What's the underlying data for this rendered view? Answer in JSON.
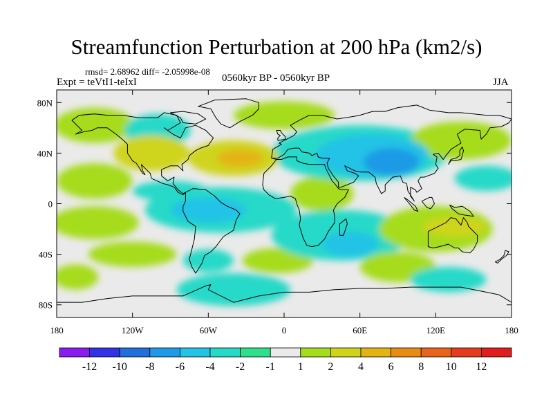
{
  "chart_data": {
    "type": "heatmap",
    "title": "Streamfunction Perturbation at 200 hPa (km2/s)",
    "stats_line": "rmsd= 2.68962 diff= -2.05998e-08",
    "experiment": "Expt = teVtI1-teIxI",
    "period": "0560kyr BP - 0560kyr BP",
    "season": "JJA",
    "x_range": [
      -180,
      180
    ],
    "y_range": [
      -90,
      90
    ],
    "x_ticks": [
      {
        "value": -180,
        "label": "180"
      },
      {
        "value": -120,
        "label": "120W"
      },
      {
        "value": -60,
        "label": "60W"
      },
      {
        "value": 0,
        "label": "0"
      },
      {
        "value": 60,
        "label": "60E"
      },
      {
        "value": 120,
        "label": "120E"
      },
      {
        "value": 180,
        "label": "180"
      }
    ],
    "y_ticks": [
      {
        "value": 80,
        "label": "80N"
      },
      {
        "value": 40,
        "label": "40N"
      },
      {
        "value": 0,
        "label": "0"
      },
      {
        "value": -40,
        "label": "40S"
      },
      {
        "value": -80,
        "label": "80S"
      }
    ],
    "colorbar": {
      "colors": [
        "#8a1cf0",
        "#3232e6",
        "#1f6fdc",
        "#1e9ae6",
        "#23c3e6",
        "#26d9c8",
        "#2ee08c",
        "#eaeaea",
        "#a6dc1e",
        "#cfd41a",
        "#e4b414",
        "#eb8c12",
        "#e8641a",
        "#e63c1e",
        "#e01e1e"
      ],
      "labels": [
        "-12",
        "-10",
        "-8",
        "-6",
        "-4",
        "-2",
        "-1",
        "1",
        "2",
        "4",
        "6",
        "8",
        "10",
        "12"
      ]
    },
    "field_blobs": [
      {
        "lon": -150,
        "lat": 18,
        "rlon": 30,
        "rlat": 14,
        "level": 2
      },
      {
        "lon": -150,
        "lat": 62,
        "rlon": 32,
        "rlat": 14,
        "level": 2
      },
      {
        "lon": -100,
        "lat": 58,
        "rlon": 26,
        "rlat": 13,
        "level": -2
      },
      {
        "lon": -105,
        "lat": 40,
        "rlon": 30,
        "rlat": 14,
        "level": 4
      },
      {
        "lon": -40,
        "lat": 36,
        "rlon": 36,
        "rlat": 14,
        "level": 4
      },
      {
        "lon": -35,
        "lat": 36,
        "rlon": 18,
        "rlat": 7,
        "level": 6
      },
      {
        "lon": 0,
        "lat": 70,
        "rlon": 40,
        "rlat": 11,
        "level": 2
      },
      {
        "lon": -90,
        "lat": 10,
        "rlon": 30,
        "rlat": 8,
        "level": -2
      },
      {
        "lon": -50,
        "lat": -5,
        "rlon": 60,
        "rlat": 18,
        "level": -2
      },
      {
        "lon": -60,
        "lat": -5,
        "rlon": 30,
        "rlat": 10,
        "level": -4
      },
      {
        "lon": -150,
        "lat": -15,
        "rlon": 35,
        "rlat": 13,
        "level": 2
      },
      {
        "lon": -120,
        "lat": -40,
        "rlon": 35,
        "rlat": 10,
        "level": 2
      },
      {
        "lon": -165,
        "lat": -58,
        "rlon": 18,
        "rlat": 10,
        "level": 2
      },
      {
        "lon": -60,
        "lat": -45,
        "rlon": 20,
        "rlat": 9,
        "level": -2
      },
      {
        "lon": -40,
        "lat": -68,
        "rlon": 45,
        "rlat": 13,
        "level": -2
      },
      {
        "lon": -5,
        "lat": -45,
        "rlon": 28,
        "rlat": 10,
        "level": 2
      },
      {
        "lon": 30,
        "lat": 8,
        "rlon": 25,
        "rlat": 14,
        "level": 2
      },
      {
        "lon": 60,
        "lat": 40,
        "rlon": 70,
        "rlat": 22,
        "level": -2
      },
      {
        "lon": 70,
        "lat": 38,
        "rlon": 45,
        "rlat": 17,
        "level": -4
      },
      {
        "lon": 85,
        "lat": 33,
        "rlon": 22,
        "rlat": 11,
        "level": -6
      },
      {
        "lon": 45,
        "lat": -25,
        "rlon": 55,
        "rlat": 20,
        "level": -2
      },
      {
        "lon": 52,
        "lat": -32,
        "rlon": 22,
        "rlat": 10,
        "level": -4
      },
      {
        "lon": 120,
        "lat": -20,
        "rlon": 45,
        "rlat": 18,
        "level": 2
      },
      {
        "lon": 135,
        "lat": -18,
        "rlon": 25,
        "rlat": 8,
        "level": 4
      },
      {
        "lon": 90,
        "lat": -50,
        "rlon": 30,
        "rlat": 12,
        "level": 2
      },
      {
        "lon": 130,
        "lat": -60,
        "rlon": 30,
        "rlat": 10,
        "level": -2
      },
      {
        "lon": 140,
        "lat": 50,
        "rlon": 40,
        "rlat": 15,
        "level": 2
      },
      {
        "lon": 160,
        "lat": 20,
        "rlon": 25,
        "rlat": 10,
        "level": -2
      }
    ]
  }
}
